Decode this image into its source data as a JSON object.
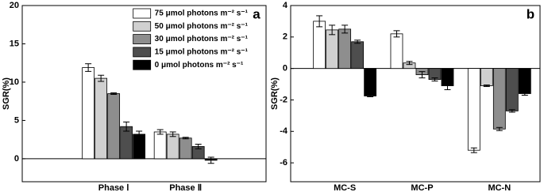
{
  "chart_data": [
    {
      "type": "bar",
      "panel_label": "a",
      "ylabel": "SGR(%)",
      "categories": [
        "Phase Ⅰ",
        "Phase Ⅱ"
      ],
      "ylim": [
        -3,
        20
      ],
      "yticks": [
        0,
        5,
        10,
        15,
        20
      ],
      "legend": "upper right",
      "series": [
        {
          "name": "75 μmol photons m⁻² s⁻¹",
          "color": "#ffffff",
          "values": [
            11.9,
            3.5
          ],
          "errors": [
            0.5,
            0.3
          ]
        },
        {
          "name": "50 μmol photons m⁻² s⁻¹",
          "color": "#d0d0d0",
          "values": [
            10.5,
            3.2
          ],
          "errors": [
            0.4,
            0.3
          ]
        },
        {
          "name": "30 μmol photons m⁻² s⁻¹",
          "color": "#8e8e8e",
          "values": [
            8.5,
            2.7
          ],
          "errors": [
            0.1,
            0.1
          ]
        },
        {
          "name": "15 μmol photons m⁻² s⁻¹",
          "color": "#4e4e4e",
          "values": [
            4.2,
            1.6
          ],
          "errors": [
            0.6,
            0.3
          ]
        },
        {
          "name": "0  μmol photons m⁻² s⁻¹",
          "color": "#000000",
          "values": [
            3.2,
            -0.2
          ],
          "errors": [
            0.4,
            0.4
          ]
        }
      ]
    },
    {
      "type": "bar",
      "panel_label": "b",
      "ylabel": "SGR(%)",
      "categories": [
        "MC-S",
        "MC-P",
        "MC-N"
      ],
      "ylim": [
        -7.2,
        4
      ],
      "yticks": [
        -6,
        -4,
        -2,
        0,
        2,
        4
      ],
      "series": [
        {
          "color": "#ffffff",
          "values": [
            3.0,
            2.2,
            -5.2
          ],
          "errors": [
            0.35,
            0.2,
            0.15
          ]
        },
        {
          "color": "#d0d0d0",
          "values": [
            2.45,
            0.35,
            -1.1
          ],
          "errors": [
            0.3,
            0.1,
            0.05
          ]
        },
        {
          "color": "#8e8e8e",
          "values": [
            2.5,
            -0.4,
            -3.85
          ],
          "errors": [
            0.25,
            0.2,
            0.1
          ]
        },
        {
          "color": "#4e4e4e",
          "values": [
            1.7,
            -0.7,
            -2.7
          ],
          "errors": [
            0.1,
            0.1,
            0.08
          ]
        },
        {
          "color": "#000000",
          "values": [
            -1.75,
            -1.1,
            -1.6
          ],
          "errors": [
            0.05,
            0.25,
            0.1
          ]
        }
      ]
    }
  ]
}
